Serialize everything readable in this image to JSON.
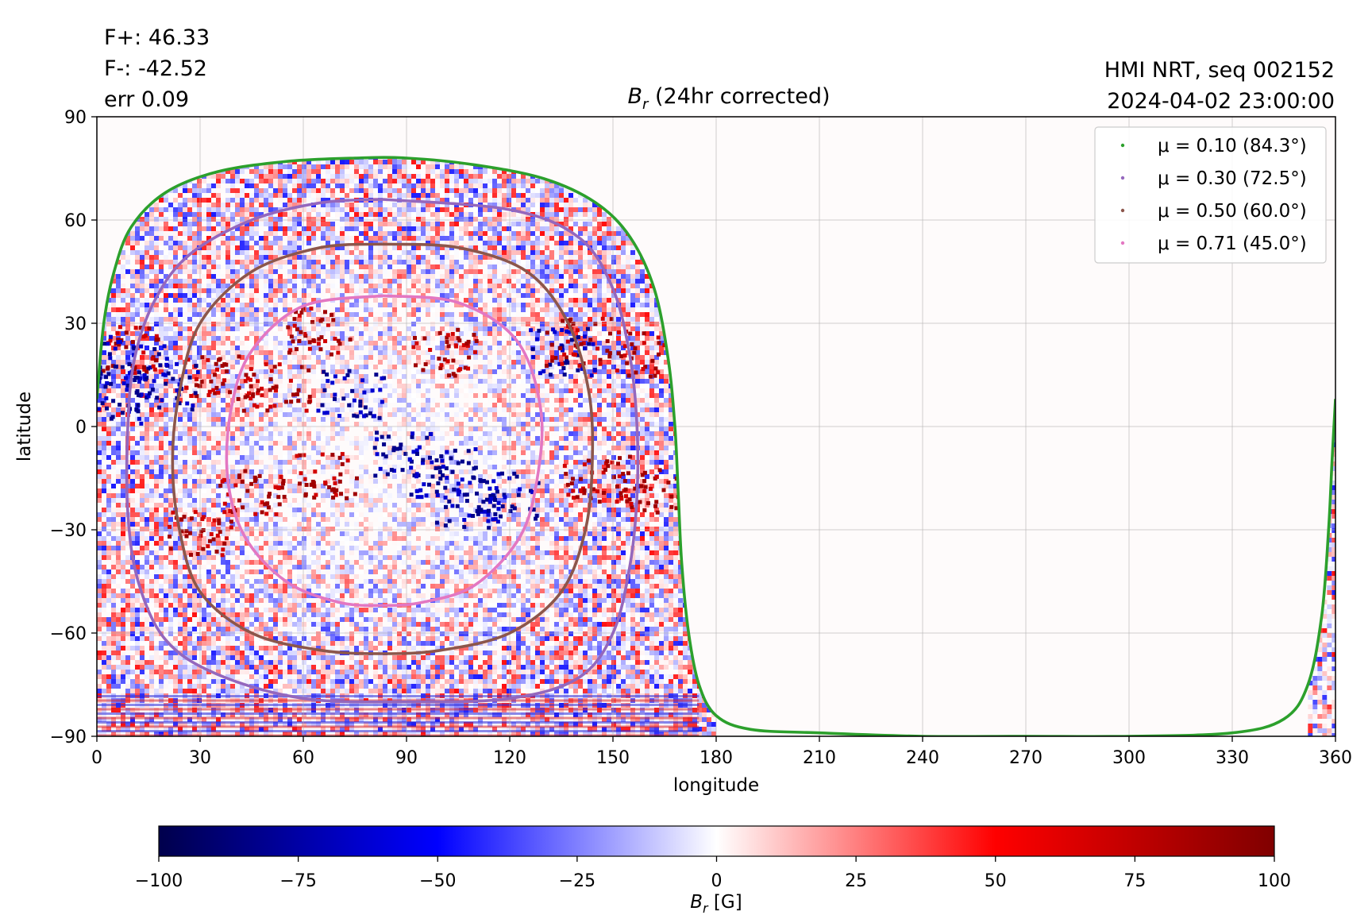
{
  "chart_data": {
    "type": "heatmap",
    "title": "B_r (24hr corrected)",
    "title_symbol": "B",
    "title_sub": "r",
    "title_rest": " (24hr corrected)",
    "stats": [
      "F+: 46.33",
      "F-: -42.52",
      "err 0.09"
    ],
    "info": [
      "HMI NRT, seq 002152",
      "2024-04-02 23:00:00"
    ],
    "xlabel": "longitude",
    "ylabel": "latitude",
    "xlim": [
      0,
      360
    ],
    "ylim": [
      -90,
      90
    ],
    "xticks": [
      0,
      30,
      60,
      90,
      120,
      150,
      180,
      210,
      240,
      270,
      300,
      330,
      360
    ],
    "yticks": [
      90,
      60,
      30,
      0,
      -30,
      -60,
      -90
    ],
    "ytick_labels": [
      "90",
      "60",
      "30",
      "0",
      "−30",
      "−60",
      "−90"
    ],
    "grid": true,
    "legend_position": "top-right",
    "legend": [
      {
        "label": "μ = 0.10 (84.3°)",
        "color": "#2ca02c"
      },
      {
        "label": "μ = 0.30 (72.5°)",
        "color": "#9467bd"
      },
      {
        "label": "μ = 0.50 (60.0°)",
        "color": "#8c564b"
      },
      {
        "label": "μ = 0.71 (45.0°)",
        "color": "#e377c2"
      }
    ],
    "disk_center": {
      "lon": 83,
      "lat": -6
    },
    "colorbar": {
      "label": "B_r [G]",
      "label_symbol": "B",
      "label_sub": "r",
      "label_rest": " [G]",
      "range": [
        -100,
        100
      ],
      "ticks": [
        -100,
        -75,
        -50,
        -25,
        0,
        25,
        50,
        75,
        100
      ],
      "tick_labels": [
        "−100",
        "−75",
        "−50",
        "−25",
        "0",
        "25",
        "50",
        "75",
        "100"
      ],
      "colormap": "seismic"
    },
    "contours": [
      {
        "mu": 0.1,
        "angle": 84.3,
        "color": "#2ca02c",
        "points": [
          [
            0,
            8
          ],
          [
            2,
            30
          ],
          [
            5,
            45
          ],
          [
            10,
            58
          ],
          [
            20,
            68
          ],
          [
            35,
            74
          ],
          [
            55,
            77
          ],
          [
            75,
            78
          ],
          [
            90,
            78
          ],
          [
            110,
            76
          ],
          [
            130,
            72
          ],
          [
            145,
            65
          ],
          [
            155,
            55
          ],
          [
            162,
            40
          ],
          [
            166,
            20
          ],
          [
            168,
            0
          ],
          [
            169,
            -20
          ],
          [
            170,
            -40
          ],
          [
            172,
            -60
          ],
          [
            175,
            -75
          ],
          [
            180,
            -84
          ],
          [
            190,
            -88
          ],
          [
            210,
            -89
          ],
          [
            240,
            -90
          ],
          [
            270,
            -90
          ],
          [
            300,
            -90
          ],
          [
            330,
            -89
          ],
          [
            345,
            -85
          ],
          [
            352,
            -75
          ],
          [
            356,
            -55
          ],
          [
            358,
            -30
          ],
          [
            359,
            -10
          ],
          [
            360,
            8
          ]
        ]
      },
      {
        "mu": 0.3,
        "angle": 72.5,
        "color": "#9467bd",
        "points": [
          [
            83,
            66
          ],
          [
            120,
            63
          ],
          [
            140,
            55
          ],
          [
            150,
            40
          ],
          [
            155,
            20
          ],
          [
            157,
            0
          ],
          [
            157,
            -20
          ],
          [
            155,
            -40
          ],
          [
            150,
            -60
          ],
          [
            140,
            -73
          ],
          [
            120,
            -79
          ],
          [
            90,
            -80
          ],
          [
            60,
            -79
          ],
          [
            35,
            -72
          ],
          [
            20,
            -62
          ],
          [
            12,
            -45
          ],
          [
            9,
            -25
          ],
          [
            9,
            0
          ],
          [
            11,
            20
          ],
          [
            17,
            37
          ],
          [
            27,
            50
          ],
          [
            45,
            60
          ],
          [
            65,
            65
          ],
          [
            83,
            66
          ]
        ]
      },
      {
        "mu": 0.5,
        "angle": 60.0,
        "color": "#8c564b",
        "points": [
          [
            83,
            53
          ],
          [
            105,
            52
          ],
          [
            125,
            45
          ],
          [
            137,
            30
          ],
          [
            143,
            10
          ],
          [
            144,
            -10
          ],
          [
            142,
            -30
          ],
          [
            135,
            -48
          ],
          [
            120,
            -60
          ],
          [
            100,
            -65
          ],
          [
            83,
            -66
          ],
          [
            65,
            -65
          ],
          [
            45,
            -60
          ],
          [
            30,
            -48
          ],
          [
            24,
            -30
          ],
          [
            22,
            -10
          ],
          [
            24,
            10
          ],
          [
            30,
            30
          ],
          [
            45,
            45
          ],
          [
            65,
            52
          ],
          [
            83,
            53
          ]
        ]
      },
      {
        "mu": 0.71,
        "angle": 45.0,
        "color": "#e377c2",
        "points": [
          [
            83,
            38
          ],
          [
            105,
            36
          ],
          [
            122,
            25
          ],
          [
            129,
            5
          ],
          [
            128,
            -15
          ],
          [
            123,
            -32
          ],
          [
            110,
            -46
          ],
          [
            95,
            -51
          ],
          [
            83,
            -52
          ],
          [
            70,
            -51
          ],
          [
            55,
            -45
          ],
          [
            43,
            -32
          ],
          [
            38,
            -15
          ],
          [
            39,
            5
          ],
          [
            45,
            22
          ],
          [
            60,
            35
          ],
          [
            83,
            38
          ]
        ]
      }
    ]
  }
}
